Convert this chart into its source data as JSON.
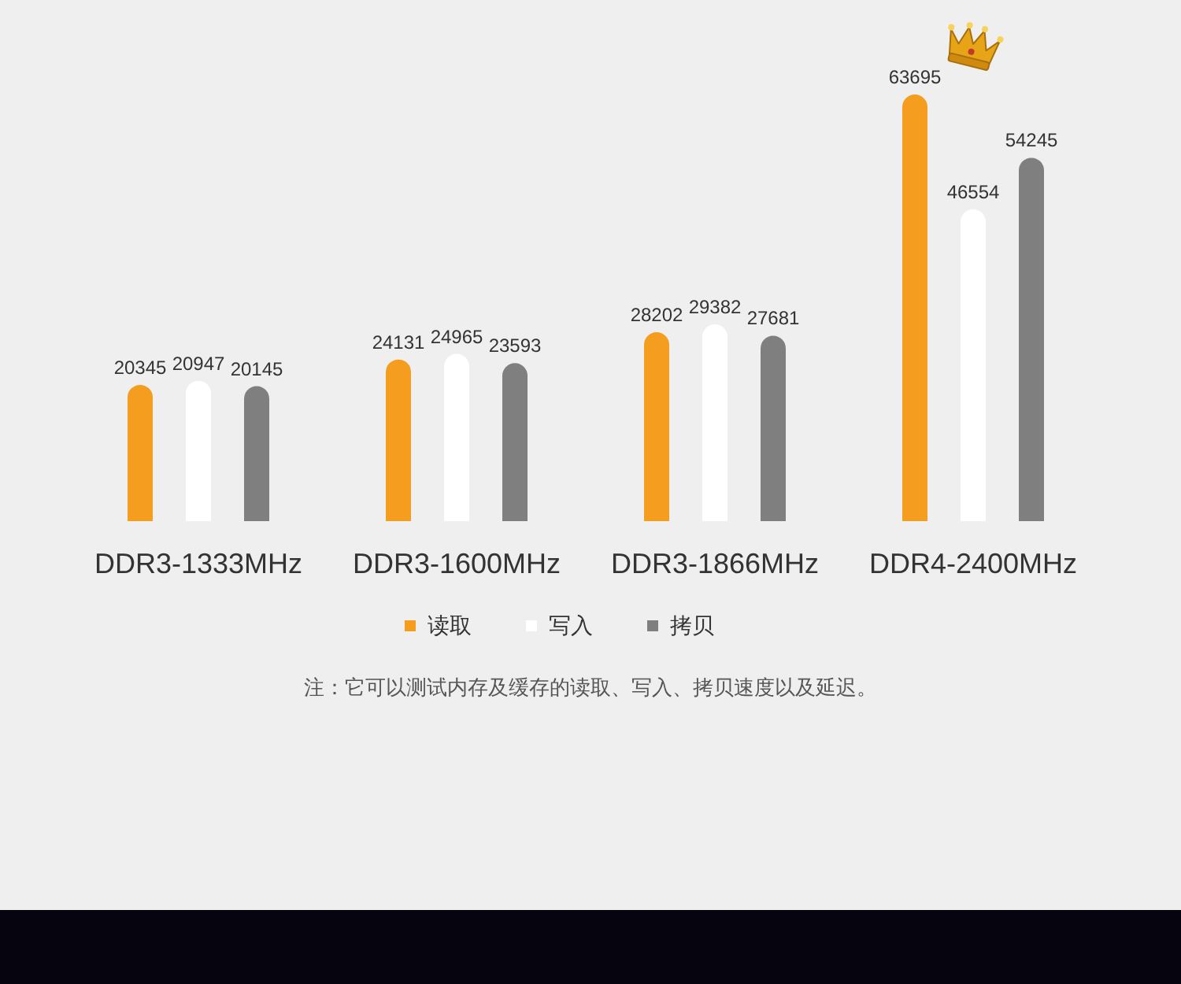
{
  "chart_data": {
    "type": "bar",
    "categories": [
      "DDR3-1333MHz",
      "DDR3-1600MHz",
      "DDR3-1866MHz",
      "DDR4-2400MHz"
    ],
    "series": [
      {
        "name": "读取",
        "color": "#f49d1e",
        "values": [
          20345,
          24131,
          28202,
          63695
        ]
      },
      {
        "name": "写入",
        "color": "#ffffff",
        "values": [
          20947,
          24965,
          29382,
          46554
        ]
      },
      {
        "name": "拷贝",
        "color": "#7f7f7f",
        "values": [
          20145,
          23593,
          27681,
          54245
        ]
      }
    ],
    "data_labels": true,
    "legend": "bottom",
    "annotations": [
      "注：它可以测试内存及缓存的读取、写入、拷贝速度以及延迟。"
    ]
  }
}
